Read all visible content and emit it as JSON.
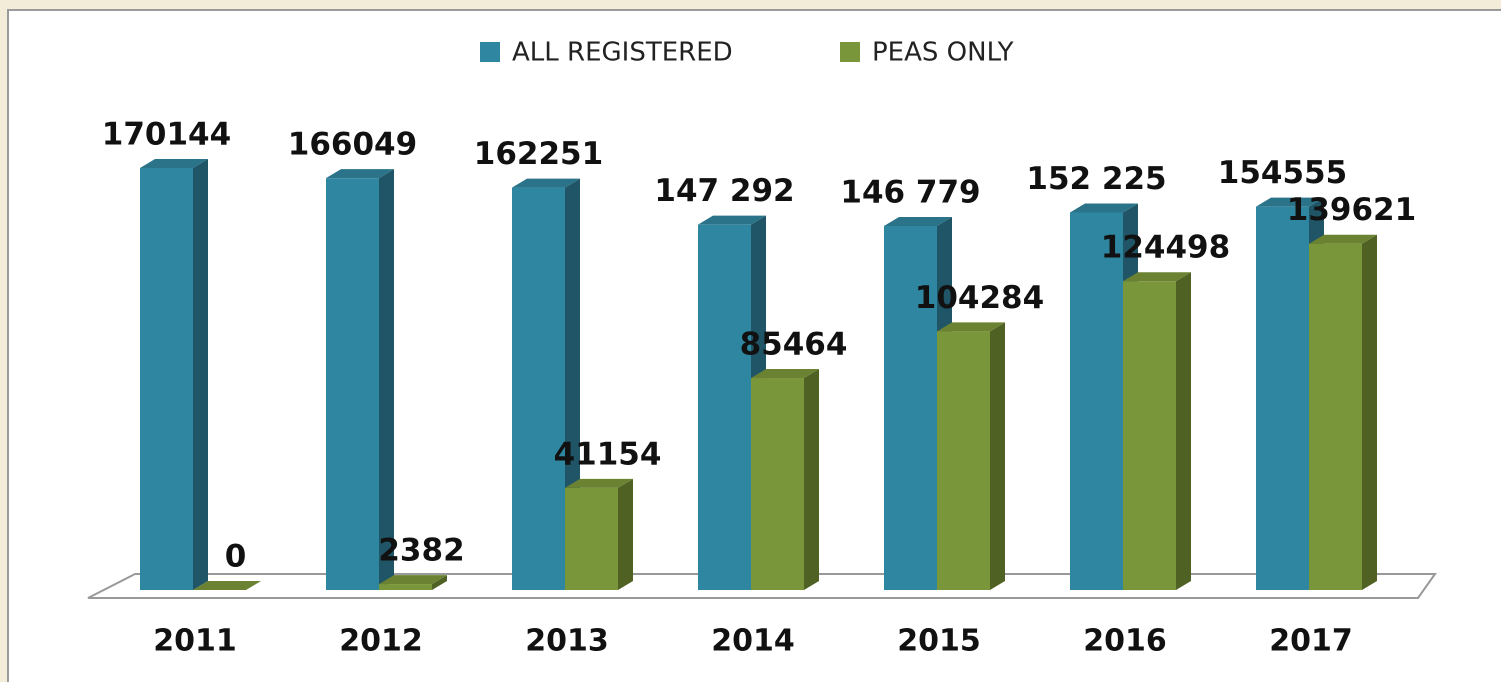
{
  "chart_data": {
    "type": "bar3d",
    "categories": [
      "2011",
      "2012",
      "2013",
      "2014",
      "2015",
      "2016",
      "2017"
    ],
    "series": [
      {
        "name": "ALL REGISTERED",
        "color": "#2e86a0",
        "side": "#1f5566",
        "top": "#2a7389",
        "values": [
          170144,
          166049,
          162251,
          147292,
          146779,
          152225,
          154555
        ],
        "value_labels": [
          "170144",
          "166049",
          "162251",
          "147 292",
          "146 779",
          "152 225",
          "154555"
        ]
      },
      {
        "name": "PEAS ONLY",
        "color": "#7a963a",
        "side": "#4f6224",
        "top": "#6a8231",
        "values": [
          0,
          2382,
          41154,
          85464,
          104284,
          124498,
          139621
        ]
      }
    ],
    "legend": "top"
  }
}
